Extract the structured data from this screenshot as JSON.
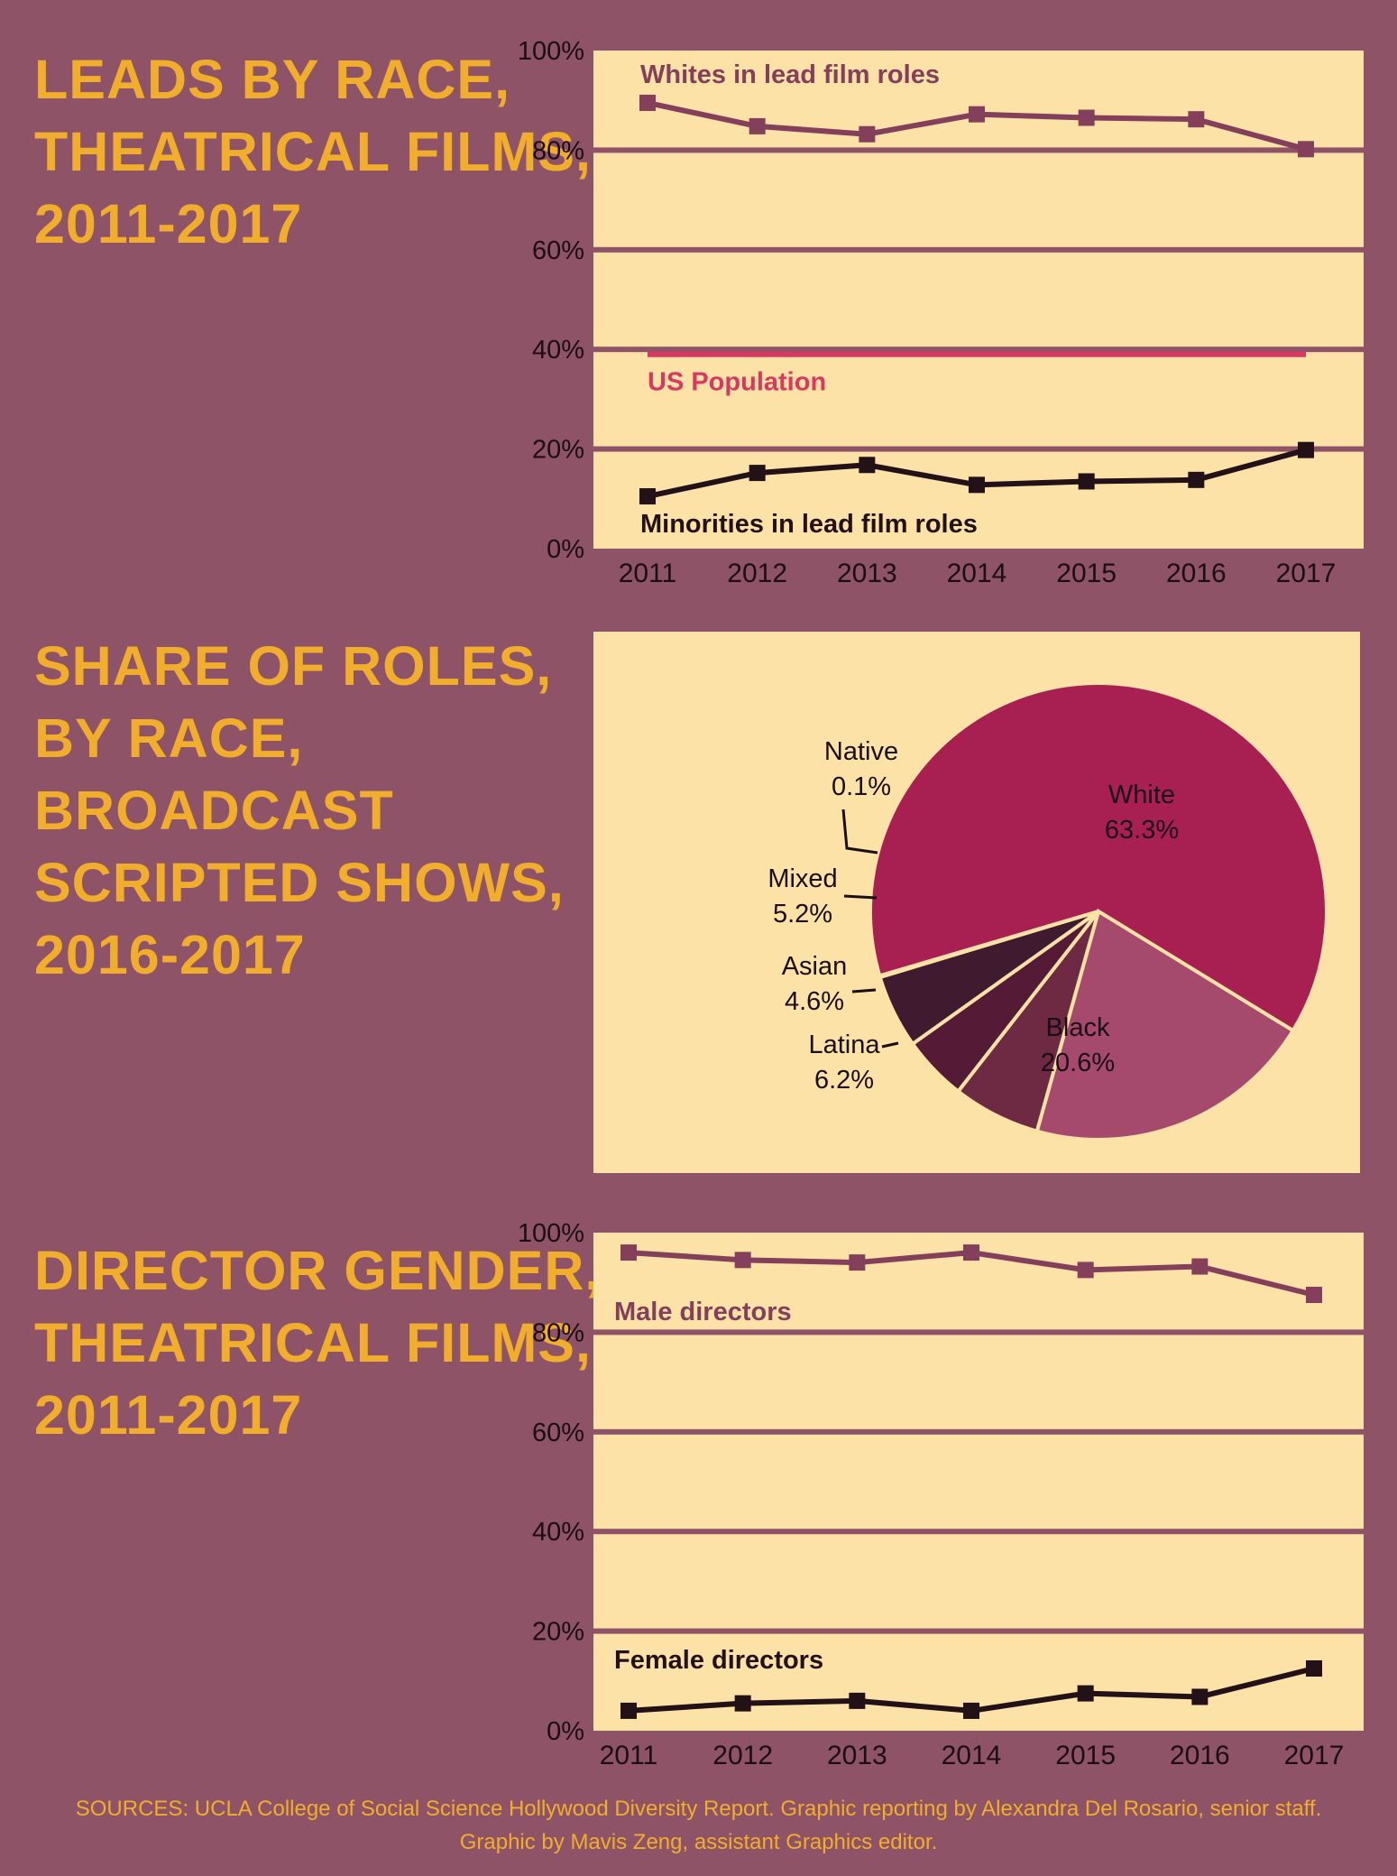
{
  "colors": {
    "background": "#8f5367",
    "title": "#f0ae2c",
    "plot_bg": "#fde2a8",
    "upper_series": "#84405a",
    "lower_series": "#221218",
    "us_population": "#d63a62"
  },
  "titles": {
    "leads": "LEADS BY RACE,\nTHEATRICAL FILMS,\n2011-2017",
    "roles": "SHARE OF ROLES,\nBY RACE,\nBROADCAST\nSCRIPTED SHOWS,\n2016-2017",
    "directors": "DIRECTOR GENDER,\nTHEATRICAL FILMS,\n2011-2017"
  },
  "source": "SOURCES: UCLA College of Social Science Hollywood Diversity Report. Graphic reporting by Alexandra Del Rosario, senior staff.\nGraphic by Mavis Zeng, assistant Graphics editor.",
  "chart_data": [
    {
      "type": "line",
      "x": [
        "2011",
        "2012",
        "2013",
        "2014",
        "2015",
        "2016",
        "2017"
      ],
      "yticks": [
        "0%",
        "20%",
        "40%",
        "60%",
        "80%",
        "100%"
      ],
      "ylim": [
        0,
        100
      ],
      "grid": true,
      "series": [
        {
          "name": "Whites in lead film roles",
          "values": [
            89.5,
            84.8,
            83.2,
            87.2,
            86.5,
            86.2,
            80.2
          ]
        },
        {
          "name": "Minorities in lead film roles",
          "values": [
            10.5,
            15.2,
            16.8,
            12.8,
            13.5,
            13.8,
            19.8
          ]
        }
      ],
      "reference_line": {
        "name": "US Population",
        "value": 39
      }
    },
    {
      "type": "pie",
      "slices": [
        {
          "label": "White",
          "value": 63.3,
          "value_label": "63.3%",
          "color": "#a81f52"
        },
        {
          "label": "Black",
          "value": 20.6,
          "value_label": "20.6%",
          "color": "#a54a6c"
        },
        {
          "label": "Latina",
          "value": 6.2,
          "value_label": "6.2%",
          "color": "#6e2a42"
        },
        {
          "label": "Asian",
          "value": 4.6,
          "value_label": "4.6%",
          "color": "#551a36"
        },
        {
          "label": "Mixed",
          "value": 5.2,
          "value_label": "5.2%",
          "color": "#401a2e"
        },
        {
          "label": "Native",
          "value": 0.1,
          "value_label": "0.1%",
          "color": "#401a2e"
        }
      ]
    },
    {
      "type": "line",
      "x": [
        "2011",
        "2012",
        "2013",
        "2014",
        "2015",
        "2016",
        "2017"
      ],
      "yticks": [
        "0%",
        "20%",
        "40%",
        "60%",
        "80%",
        "100%"
      ],
      "ylim": [
        0,
        100
      ],
      "grid": true,
      "series": [
        {
          "name": "Male directors",
          "values": [
            96.0,
            94.5,
            94.0,
            96.0,
            92.5,
            93.2,
            87.5
          ]
        },
        {
          "name": "Female directors",
          "values": [
            4.0,
            5.5,
            6.0,
            4.0,
            7.5,
            6.8,
            12.5
          ]
        }
      ]
    }
  ]
}
